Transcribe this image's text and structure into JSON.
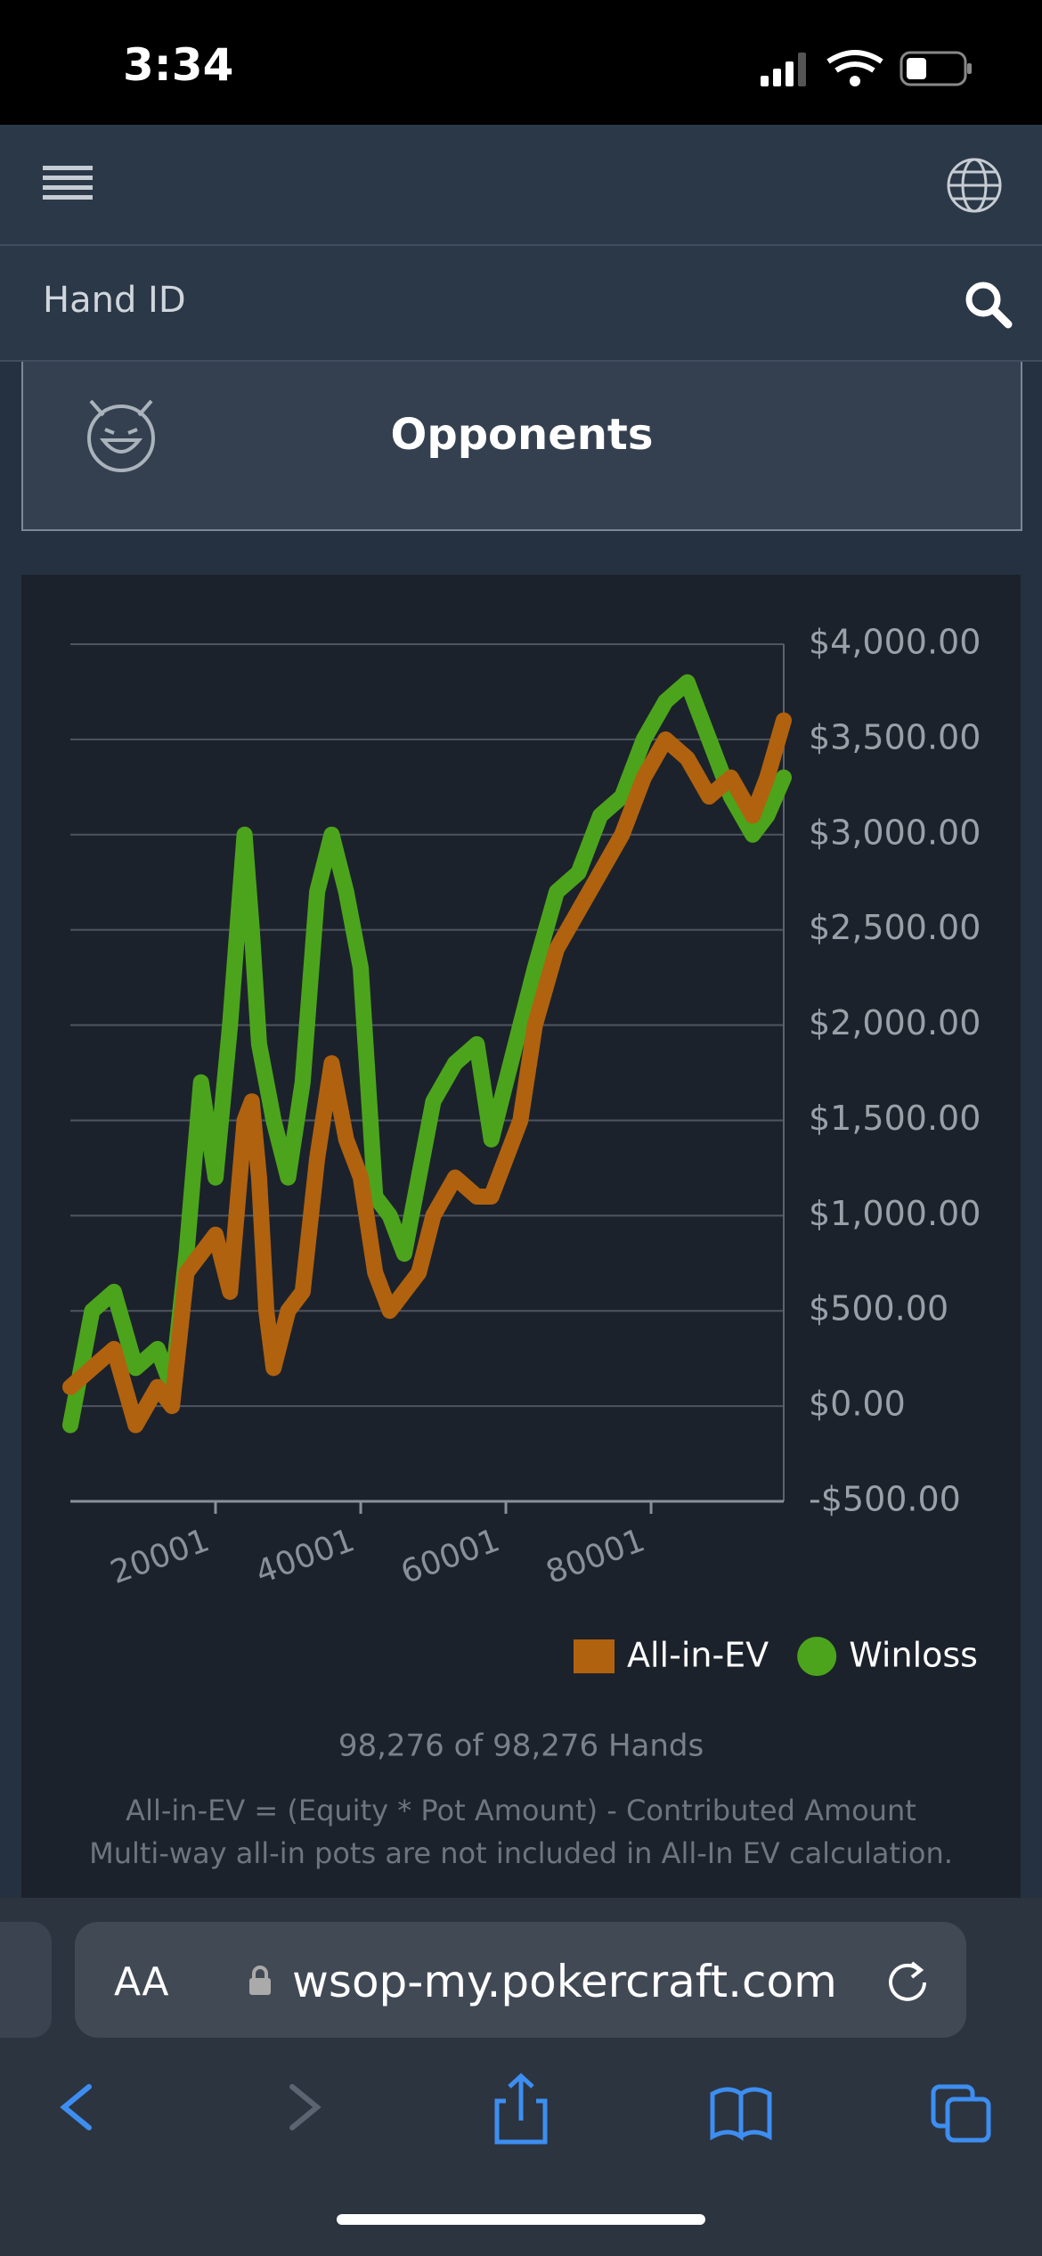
{
  "status_bar": {
    "time": "3:34"
  },
  "nav": {
    "search_placeholder": "Hand ID"
  },
  "card": {
    "title": "Opponents"
  },
  "chart_data": {
    "type": "line",
    "x": [
      1,
      3000,
      6000,
      9000,
      12000,
      14000,
      16000,
      18000,
      20000,
      22000,
      24000,
      25000,
      26000,
      27000,
      28000,
      30000,
      32000,
      34000,
      36000,
      38000,
      40000,
      42000,
      44000,
      46000,
      48000,
      50000,
      53000,
      56000,
      58000,
      60000,
      62000,
      64000,
      67000,
      70000,
      73000,
      76000,
      79000,
      82000,
      85000,
      88000,
      91000,
      94000,
      96000,
      98276
    ],
    "series": [
      {
        "name": "All-in-EV",
        "color": "#b0620f",
        "values": [
          100,
          200,
          300,
          -100,
          100,
          0,
          700,
          800,
          900,
          600,
          1500,
          1600,
          1200,
          500,
          200,
          500,
          600,
          1300,
          1800,
          1400,
          1200,
          700,
          500,
          600,
          700,
          1000,
          1200,
          1100,
          1100,
          1300,
          1500,
          2000,
          2400,
          2600,
          2800,
          3000,
          3300,
          3500,
          3400,
          3200,
          3300,
          3100,
          3300,
          3600
        ]
      },
      {
        "name": "Winloss",
        "color": "#4ca41c",
        "values": [
          -100,
          500,
          600,
          200,
          300,
          100,
          800,
          1700,
          1200,
          2000,
          3000,
          2500,
          1900,
          1700,
          1500,
          1200,
          1700,
          2700,
          3000,
          2700,
          2300,
          1100,
          1000,
          800,
          1200,
          1600,
          1800,
          1900,
          1400,
          1700,
          2000,
          2300,
          2700,
          2800,
          3100,
          3200,
          3500,
          3700,
          3800,
          3500,
          3200,
          3000,
          3100,
          3300
        ]
      }
    ],
    "xlim": [
      1,
      98276
    ],
    "xticks": [
      20001,
      40001,
      60001,
      80001
    ],
    "ylim": [
      -500,
      4000
    ],
    "yticks": [
      {
        "value": -500,
        "label": "-$500.00"
      },
      {
        "value": 0,
        "label": "$0.00"
      },
      {
        "value": 500,
        "label": "$500.00"
      },
      {
        "value": 1000,
        "label": "$1,000.00"
      },
      {
        "value": 1500,
        "label": "$1,500.00"
      },
      {
        "value": 2000,
        "label": "$2,000.00"
      },
      {
        "value": 2500,
        "label": "$2,500.00"
      },
      {
        "value": 3000,
        "label": "$3,000.00"
      },
      {
        "value": 3500,
        "label": "$3,500.00"
      },
      {
        "value": 4000,
        "label": "$4,000.00"
      }
    ],
    "grid": true
  },
  "summary": "98,276 of 98,276 Hands",
  "notes": [
    "All-in-EV = (Equity * Pot Amount) - Contributed Amount",
    "Multi-way all-in pots are not included in All-In EV calculation."
  ],
  "browser": {
    "text_size": "AA",
    "url": "wsop-my.pokercraft.com"
  }
}
